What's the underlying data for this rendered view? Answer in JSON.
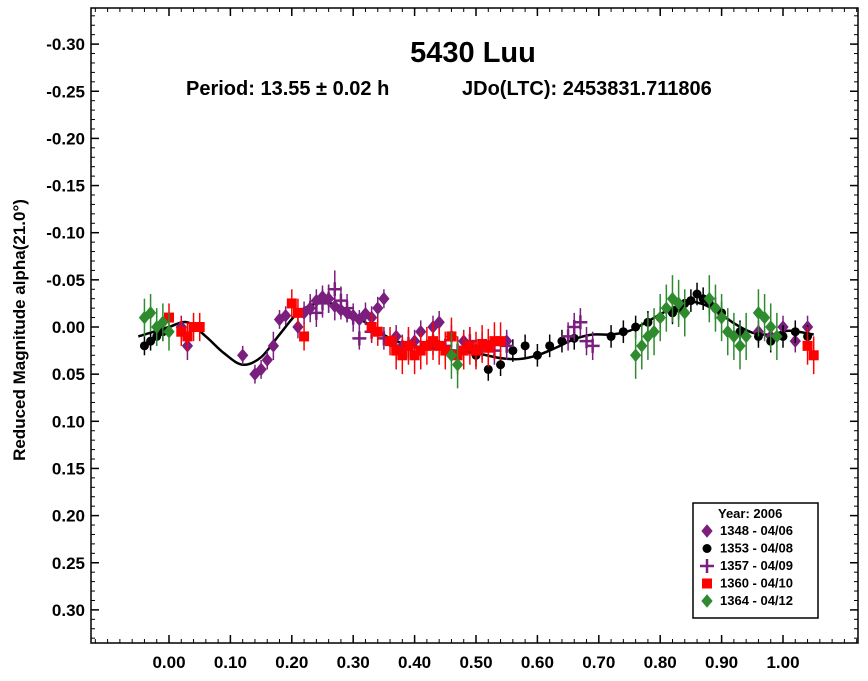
{
  "chart_data": {
    "type": "scatter",
    "title": "5430 Luu",
    "period_text": "Period: 13.55 ± 0.02 h",
    "epoch_text": "JDo(LTC): 2453831.711806",
    "ylabel": "Reduced Magnitude alpha(21.0°)",
    "xlim": [
      -0.12,
      1.12
    ],
    "ylim": [
      -0.34,
      0.34
    ],
    "y_inverted": true,
    "grid": false,
    "legend_position": "bottom-right",
    "x_ticks": [
      "0.00",
      "0.10",
      "0.20",
      "0.30",
      "0.40",
      "0.50",
      "0.60",
      "0.70",
      "0.80",
      "0.90",
      "1.00"
    ],
    "x_tick_values": [
      0.0,
      0.1,
      0.2,
      0.3,
      0.4,
      0.5,
      0.6,
      0.7,
      0.8,
      0.9,
      1.0
    ],
    "y_ticks": [
      "-0.30",
      "-0.25",
      "-0.20",
      "-0.15",
      "-0.10",
      "-0.05",
      "0.00",
      "0.05",
      "0.10",
      "0.15",
      "0.20",
      "0.25",
      "0.30"
    ],
    "y_tick_values": [
      -0.3,
      -0.25,
      -0.2,
      -0.15,
      -0.1,
      -0.05,
      0.0,
      0.05,
      0.1,
      0.15,
      0.2,
      0.25,
      0.3
    ],
    "legend_title": "Year: 2006",
    "fit_curve": {
      "color": "#000000",
      "x": [
        -0.05,
        -0.02,
        0.0,
        0.03,
        0.06,
        0.09,
        0.12,
        0.15,
        0.18,
        0.21,
        0.24,
        0.27,
        0.3,
        0.33,
        0.36,
        0.39,
        0.42,
        0.45,
        0.48,
        0.51,
        0.54,
        0.57,
        0.6,
        0.63,
        0.66,
        0.69,
        0.72,
        0.75,
        0.78,
        0.81,
        0.84,
        0.86,
        0.89,
        0.92,
        0.95,
        0.98,
        1.01,
        1.05
      ],
      "y": [
        0.01,
        0.004,
        0.0,
        -0.005,
        0.01,
        0.028,
        0.04,
        0.032,
        0.008,
        -0.015,
        -0.025,
        -0.024,
        -0.014,
        0.0,
        0.012,
        0.019,
        0.022,
        0.024,
        0.026,
        0.029,
        0.033,
        0.034,
        0.03,
        0.022,
        0.013,
        0.008,
        0.008,
        0.004,
        -0.006,
        -0.017,
        -0.025,
        -0.026,
        -0.018,
        -0.004,
        0.006,
        0.008,
        0.004,
        0.008
      ]
    },
    "series": [
      {
        "name": "1348 - 04/06",
        "marker": "diamond",
        "color": "#7b1f7f",
        "x": [
          0.12,
          0.14,
          0.15,
          0.16,
          0.17,
          0.18,
          0.19,
          0.21,
          0.22,
          0.23,
          0.24,
          0.25,
          0.26,
          0.27,
          0.28,
          0.29,
          0.3,
          0.31,
          0.32,
          0.33,
          0.34,
          0.35,
          0.37,
          0.38,
          0.4,
          0.41,
          0.43,
          0.44,
          0.46,
          0.48,
          0.5,
          0.52,
          0.55,
          0.96,
          0.98,
          1.0,
          1.02,
          1.04,
          0.02,
          0.03
        ],
        "y": [
          0.03,
          0.05,
          0.045,
          0.035,
          0.02,
          -0.008,
          -0.012,
          0.0,
          -0.015,
          -0.02,
          -0.028,
          -0.032,
          -0.03,
          -0.022,
          -0.018,
          -0.015,
          -0.012,
          -0.008,
          -0.014,
          -0.01,
          -0.02,
          -0.03,
          0.01,
          0.02,
          0.015,
          0.005,
          0.0,
          -0.005,
          0.01,
          0.015,
          0.025,
          0.02,
          0.015,
          0.005,
          0.01,
          0.0,
          0.015,
          0.0,
          0.0,
          0.02
        ],
        "err": [
          0.01,
          0.01,
          0.01,
          0.01,
          0.015,
          0.01,
          0.01,
          0.012,
          0.012,
          0.012,
          0.012,
          0.012,
          0.015,
          0.015,
          0.01,
          0.01,
          0.01,
          0.01,
          0.012,
          0.012,
          0.012,
          0.01,
          0.012,
          0.012,
          0.012,
          0.012,
          0.012,
          0.012,
          0.012,
          0.012,
          0.012,
          0.012,
          0.012,
          0.012,
          0.012,
          0.012,
          0.012,
          0.012,
          0.012,
          0.015
        ]
      },
      {
        "name": "1353 - 04/08",
        "marker": "circle",
        "color": "#000000",
        "x": [
          -0.04,
          -0.03,
          -0.02,
          -0.01,
          0.5,
          0.52,
          0.54,
          0.56,
          0.58,
          0.6,
          0.62,
          0.64,
          0.66,
          0.72,
          0.74,
          0.76,
          0.78,
          0.8,
          0.82,
          0.83,
          0.84,
          0.85,
          0.86,
          0.87,
          0.88,
          0.89,
          0.9,
          0.93,
          0.96,
          0.98,
          1.0,
          1.02,
          1.04
        ],
        "y": [
          0.02,
          0.015,
          0.01,
          0.005,
          0.03,
          0.045,
          0.04,
          0.025,
          0.02,
          0.03,
          0.02,
          0.015,
          0.012,
          0.01,
          0.005,
          0.0,
          -0.005,
          -0.01,
          -0.015,
          -0.02,
          -0.025,
          -0.028,
          -0.035,
          -0.03,
          -0.025,
          -0.02,
          -0.015,
          0.005,
          0.01,
          0.015,
          0.01,
          0.005,
          0.01
        ],
        "err": [
          0.01,
          0.01,
          0.01,
          0.01,
          0.012,
          0.012,
          0.012,
          0.012,
          0.012,
          0.012,
          0.012,
          0.012,
          0.012,
          0.012,
          0.012,
          0.012,
          0.012,
          0.012,
          0.012,
          0.012,
          0.012,
          0.012,
          0.012,
          0.012,
          0.012,
          0.012,
          0.012,
          0.012,
          0.012,
          0.012,
          0.012,
          0.012,
          0.012
        ]
      },
      {
        "name": "1357 - 04/09",
        "marker": "plus",
        "color": "#7b1f7f",
        "x": [
          0.23,
          0.24,
          0.25,
          0.26,
          0.27,
          0.28,
          0.29,
          0.3,
          0.31,
          0.33,
          0.35,
          0.37,
          0.39,
          0.41,
          0.43,
          0.45,
          0.47,
          0.49,
          0.51,
          0.53,
          0.55,
          0.65,
          0.66,
          0.67,
          0.68,
          0.69
        ],
        "y": [
          -0.02,
          -0.015,
          -0.025,
          -0.03,
          -0.04,
          -0.028,
          -0.02,
          -0.01,
          0.012,
          0.005,
          0.012,
          0.02,
          0.018,
          0.022,
          0.015,
          0.02,
          0.025,
          0.015,
          0.02,
          0.025,
          0.02,
          0.01,
          0.0,
          -0.005,
          0.015,
          0.02
        ],
        "err": [
          0.015,
          0.015,
          0.015,
          0.015,
          0.02,
          0.015,
          0.015,
          0.015,
          0.012,
          0.012,
          0.012,
          0.015,
          0.015,
          0.015,
          0.015,
          0.015,
          0.015,
          0.015,
          0.015,
          0.015,
          0.015,
          0.015,
          0.015,
          0.015,
          0.015,
          0.015
        ]
      },
      {
        "name": "1360 - 04/10",
        "marker": "square",
        "color": "#ff0000",
        "x": [
          0.0,
          0.02,
          0.03,
          0.04,
          0.05,
          0.2,
          0.21,
          0.22,
          0.33,
          0.34,
          0.36,
          0.37,
          0.38,
          0.39,
          0.4,
          0.41,
          0.42,
          0.43,
          0.44,
          0.45,
          0.46,
          0.47,
          0.48,
          0.49,
          0.5,
          0.51,
          0.52,
          0.53,
          0.54,
          1.04,
          1.05
        ],
        "y": [
          -0.01,
          0.005,
          0.01,
          0.0,
          0.0,
          -0.025,
          -0.015,
          0.01,
          0.0,
          0.005,
          0.015,
          0.025,
          0.03,
          0.02,
          0.03,
          0.025,
          0.02,
          0.015,
          0.02,
          0.025,
          0.01,
          0.03,
          0.025,
          0.02,
          0.025,
          0.018,
          0.022,
          0.015,
          0.015,
          0.02,
          0.03
        ],
        "err": [
          0.015,
          0.015,
          0.015,
          0.015,
          0.015,
          0.015,
          0.015,
          0.015,
          0.015,
          0.015,
          0.015,
          0.02,
          0.02,
          0.02,
          0.02,
          0.02,
          0.02,
          0.02,
          0.02,
          0.02,
          0.02,
          0.02,
          0.02,
          0.02,
          0.02,
          0.02,
          0.02,
          0.02,
          0.02,
          0.02,
          0.02
        ]
      },
      {
        "name": "1364 - 04/12",
        "marker": "diamond",
        "color": "#2e8b2e",
        "x": [
          -0.04,
          -0.03,
          -0.02,
          -0.01,
          0.0,
          0.46,
          0.47,
          0.76,
          0.77,
          0.78,
          0.79,
          0.8,
          0.81,
          0.82,
          0.83,
          0.84,
          0.88,
          0.89,
          0.9,
          0.91,
          0.92,
          0.93,
          0.94,
          0.96,
          0.97,
          0.98,
          0.99
        ],
        "y": [
          -0.01,
          -0.015,
          0.0,
          -0.005,
          0.005,
          0.03,
          0.04,
          0.03,
          0.02,
          0.01,
          0.005,
          -0.01,
          -0.02,
          -0.03,
          -0.025,
          -0.015,
          -0.03,
          -0.02,
          -0.01,
          0.005,
          0.01,
          0.02,
          0.01,
          -0.015,
          -0.01,
          0.0,
          0.01
        ],
        "err": [
          0.02,
          0.02,
          0.02,
          0.02,
          0.02,
          0.025,
          0.025,
          0.025,
          0.025,
          0.025,
          0.025,
          0.025,
          0.025,
          0.025,
          0.025,
          0.025,
          0.025,
          0.025,
          0.025,
          0.025,
          0.025,
          0.025,
          0.025,
          0.025,
          0.025,
          0.025,
          0.025
        ]
      }
    ]
  }
}
